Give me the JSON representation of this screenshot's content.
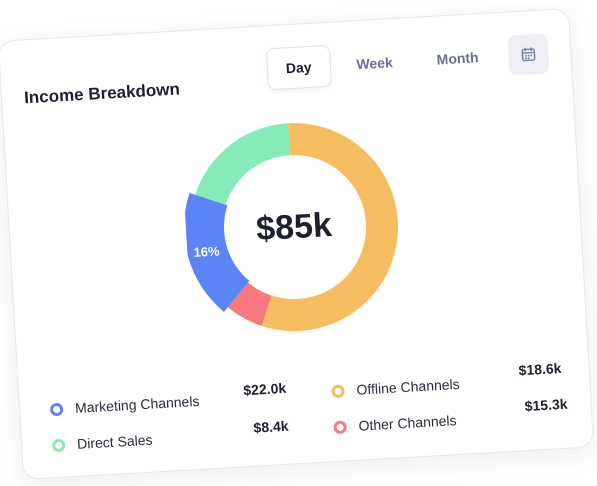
{
  "widget": {
    "title": "Income Breakdown",
    "tabs": [
      {
        "label": "Day",
        "active": true
      },
      {
        "label": "Week",
        "active": false
      },
      {
        "label": "Month",
        "active": false
      }
    ],
    "calendar_icon": "calendar-icon",
    "total": "$85k",
    "highlight_percent": "16%"
  },
  "chart_data": {
    "type": "pie",
    "title": "",
    "center_label": "$85k",
    "slices": [
      {
        "name": "Offline Channels",
        "value": 18.6,
        "display": "$18.6k",
        "color": "#F5BD5F"
      },
      {
        "name": "Other Channels",
        "value": 15.3,
        "display": "$15.3k",
        "color": "#F7797D"
      },
      {
        "name": "Marketing Channels",
        "value": 22.0,
        "display": "$22.0k",
        "color": "#5B84F4"
      },
      {
        "name": "Direct Sales",
        "value": 8.4,
        "display": "$8.4k",
        "color": "#86EBB6"
      }
    ],
    "visible_fractions": [
      0.47,
      0.05,
      0.16,
      0.16
    ],
    "data_labels": [
      "16%"
    ]
  },
  "legend": [
    {
      "label": "Marketing Channels",
      "value": "$22.0k",
      "color": "#5B84F4"
    },
    {
      "label": "Direct Sales",
      "value": "$8.4k",
      "color": "#86EBB6"
    },
    {
      "label": "Offline Channels",
      "value": "$18.6k",
      "color": "#F5BD5F"
    },
    {
      "label": "Other Channels",
      "value": "$15.3k",
      "color": "#F7797D"
    }
  ],
  "colors": {
    "card_bg": "#FFFFFF",
    "text_primary": "#1E2030",
    "tab_inactive": "#6B6F97",
    "calendar_bg": "#EEEEF4"
  }
}
